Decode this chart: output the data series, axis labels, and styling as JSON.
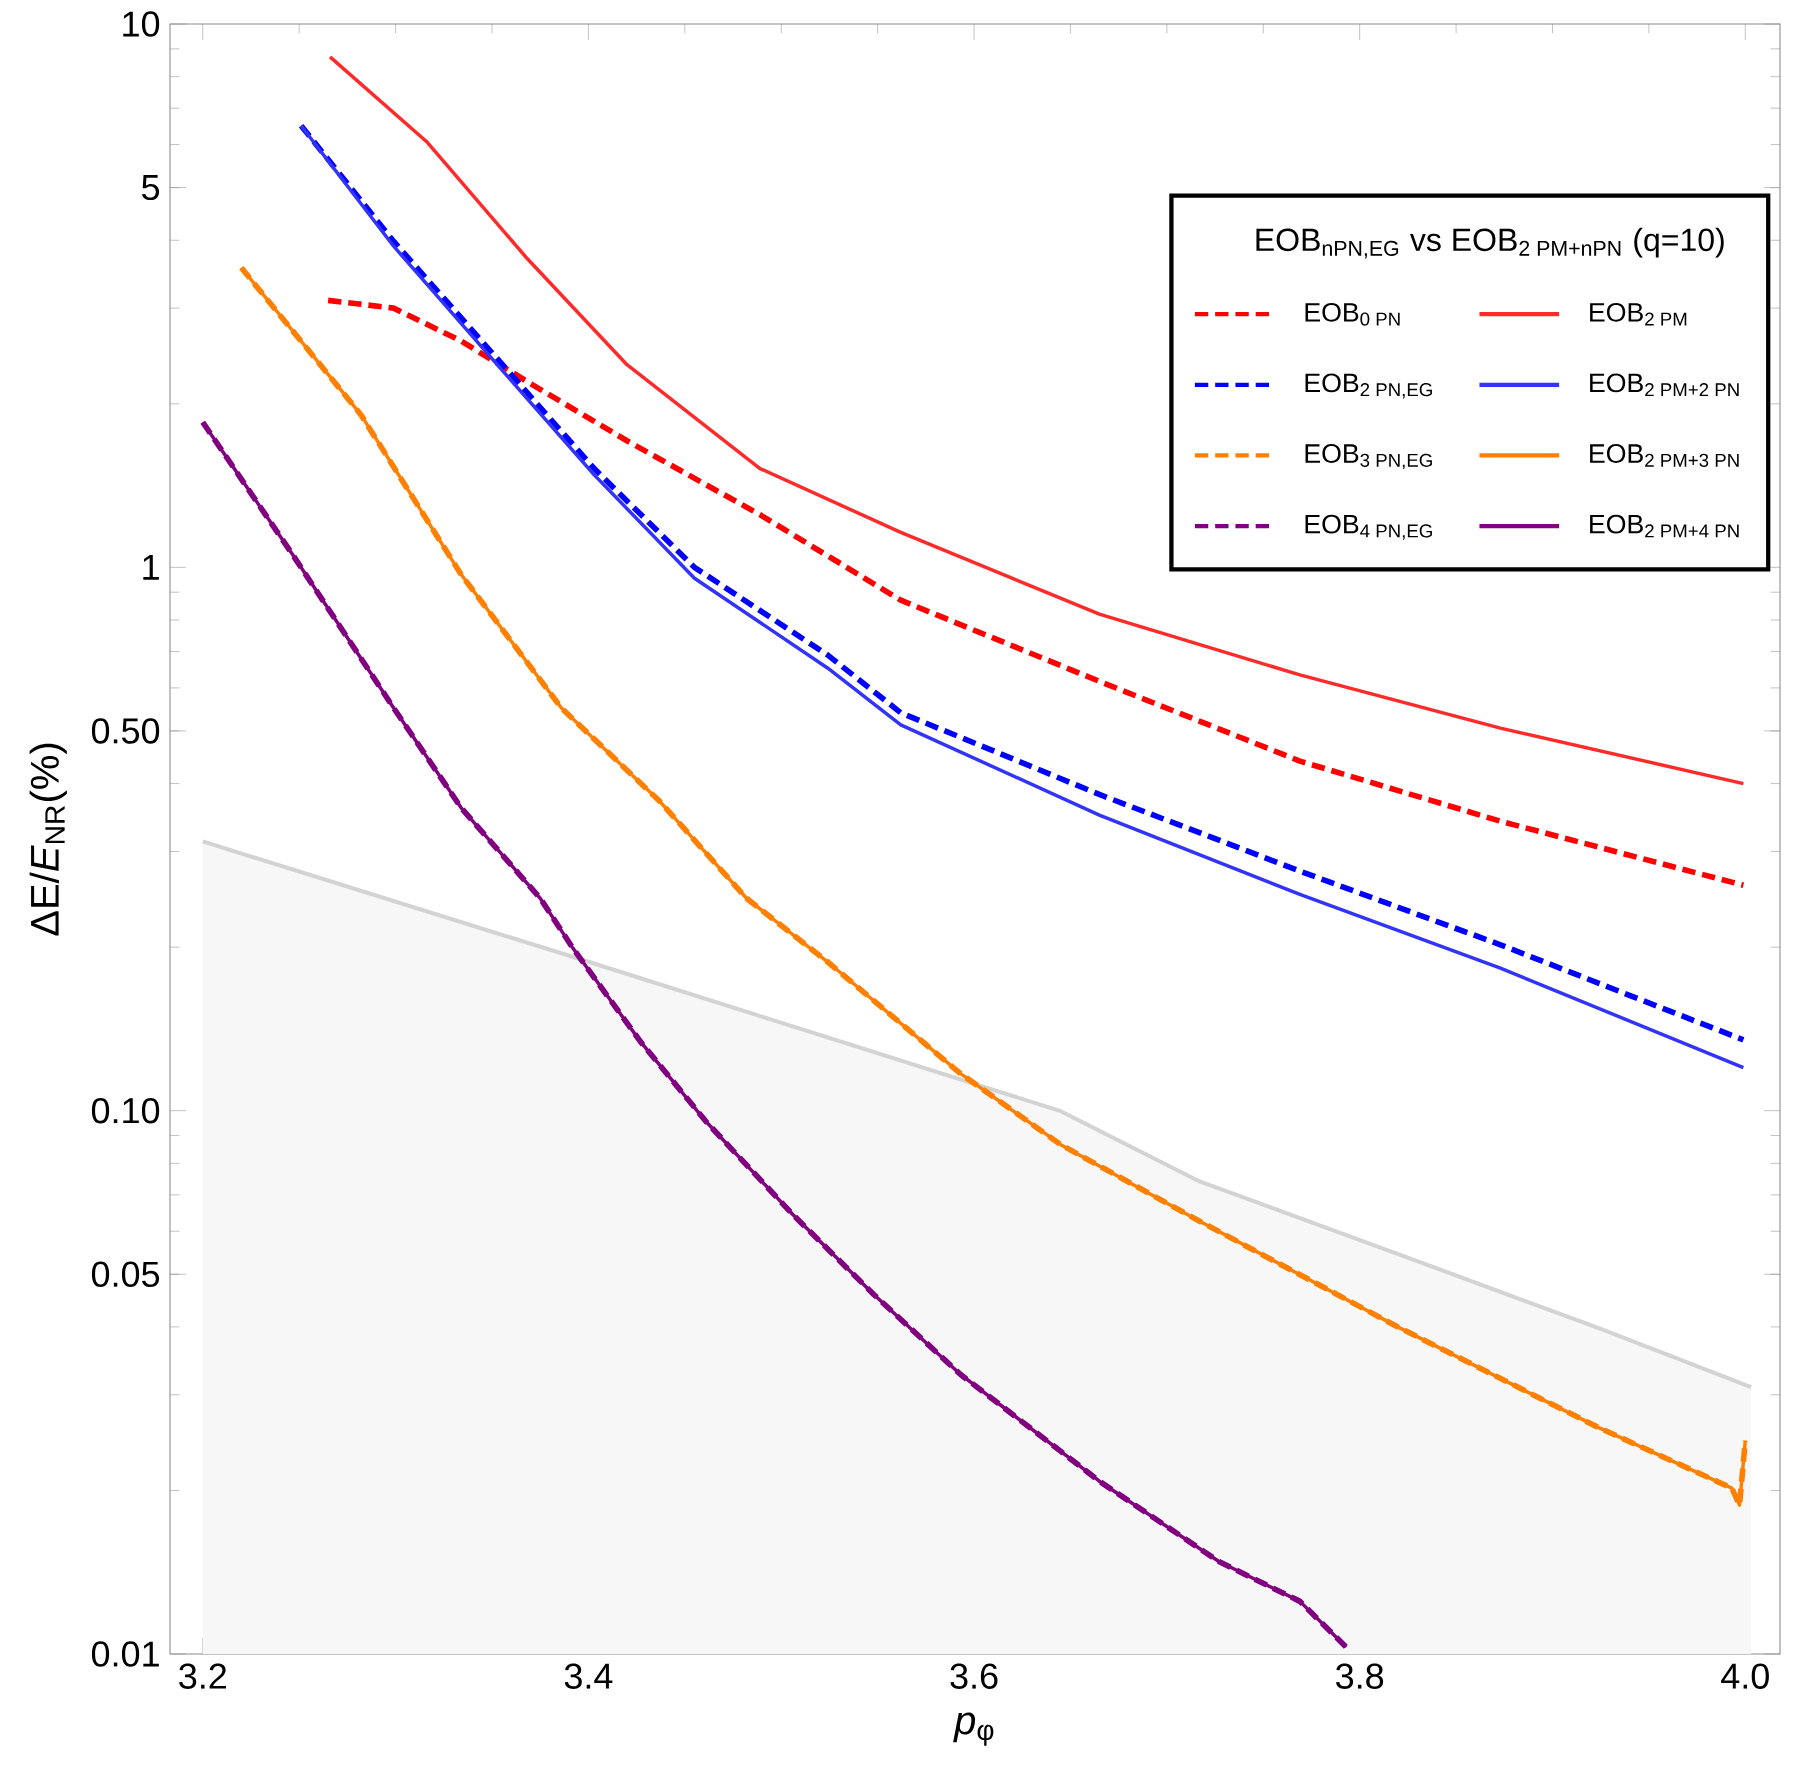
{
  "chart_data": {
    "type": "line",
    "xlabel": "*p*$_{φ}$",
    "ylabel": "ΔE/*E*$_{NR}$(%)",
    "legend_title": "EOB$_{nPN,EG}$ vs EOB$_{2 PM+nPN}$ (q=10)",
    "legend": "top right",
    "log": "y",
    "xlim": [
      3.183,
      4.018
    ],
    "ylim": [
      0.01,
      10
    ],
    "xticks": [
      3.2,
      3.4,
      3.6,
      3.8,
      {
        "value": 4.0,
        "label": "4.0"
      }
    ],
    "yticks": [
      0.01,
      0.05,
      {
        "value": 0.1,
        "label": "0.10"
      },
      {
        "value": 0.5,
        "label": "0.50"
      },
      1,
      5,
      10
    ],
    "series": [
      {
        "type": "area",
        "color": "#d3d3d3",
        "x": [
          3.2,
          3.4,
          3.645,
          3.717,
          3.821,
          3.924,
          4.003
        ],
        "values": [
          0.313,
          0.188,
          0.0998,
          0.0741,
          0.0543,
          0.0398,
          0.031
        ]
      },
      {
        "name": "\\text{EOB}_{\\text{0 PN}}",
        "color": "#ff0000",
        "line_style": "dashed",
        "x": [
          3.265,
          3.299,
          3.334,
          3.368,
          3.42,
          3.489,
          3.562,
          3.665,
          3.769,
          3.873,
          3.999
        ],
        "values": [
          3.1,
          3.0,
          2.61,
          2.2,
          1.71,
          1.25,
          0.87,
          0.617,
          0.44,
          0.341,
          0.26
        ]
      },
      {
        "name": "\\text{EOB}_{\\text{2 PM}}",
        "color": "#ff2a2a",
        "line_style": "solid",
        "x": [
          3.266,
          3.316,
          3.368,
          3.42,
          3.489,
          3.562,
          3.665,
          3.769,
          3.873,
          3.999
        ],
        "values": [
          8.7,
          6.08,
          3.71,
          2.36,
          1.52,
          1.16,
          0.82,
          0.634,
          0.506,
          0.4
        ]
      },
      {
        "name": "\\text{EOB}_{\\text{2 PN,EG}}",
        "color": "#0000ff",
        "line_style": "dashed",
        "x": [
          3.251,
          3.299,
          3.351,
          3.403,
          3.455,
          3.524,
          3.562,
          3.665,
          3.769,
          3.873,
          3.999
        ],
        "values": [
          6.5,
          3.98,
          2.46,
          1.52,
          1.0,
          0.69,
          0.54,
          0.382,
          0.276,
          0.202,
          0.135
        ]
      },
      {
        "name": "\\text{EOB}_{\\text{2 PM+2 PN}}",
        "color": "#3333ff",
        "line_style": "solid",
        "x": [
          3.251,
          3.299,
          3.351,
          3.403,
          3.455,
          3.524,
          3.562,
          3.665,
          3.769,
          3.873,
          3.999
        ],
        "values": [
          6.5,
          3.9,
          2.4,
          1.48,
          0.955,
          0.653,
          0.513,
          0.35,
          0.25,
          0.183,
          0.12
        ]
      },
      {
        "name": "\\text{EOB}_{\\text{3 PN,EG}}",
        "color": "#ff8000",
        "line_style": "dashed",
        "x": [
          3.22,
          3.282,
          3.334,
          3.386,
          3.437,
          3.482,
          3.524,
          3.593,
          3.645,
          3.717,
          3.821,
          3.924,
          3.993,
          3.997,
          4.0
        ],
        "values": [
          3.56,
          1.91,
          0.97,
          0.551,
          0.371,
          0.246,
          0.188,
          0.117,
          0.0866,
          0.0626,
          0.0398,
          0.0261,
          0.0202,
          0.0188,
          0.0247
        ]
      },
      {
        "name": "\\text{EOB}_{\\text{2 PM+3 PN}}",
        "color": "#ff8000",
        "line_style": "solid",
        "x": [
          3.22,
          3.282,
          3.334,
          3.386,
          3.437,
          3.482,
          3.524,
          3.593,
          3.645,
          3.717,
          3.821,
          3.924,
          3.993,
          3.997,
          4.0
        ],
        "values": [
          3.56,
          1.91,
          0.97,
          0.551,
          0.371,
          0.246,
          0.188,
          0.117,
          0.0866,
          0.0626,
          0.0398,
          0.0261,
          0.0202,
          0.0188,
          0.0247
        ]
      },
      {
        "name": "\\text{EOB}_{\\text{4 PN,EG}}",
        "color": "#800080",
        "line_style": "dashed",
        "x": [
          3.2,
          3.247,
          3.299,
          3.334,
          3.375,
          3.392,
          3.427,
          3.461,
          3.506,
          3.548,
          3.593,
          3.645,
          3.665,
          3.727,
          3.769,
          3.793
        ],
        "values": [
          1.85,
          1.05,
          0.551,
          0.361,
          0.246,
          0.199,
          0.134,
          0.0955,
          0.0644,
          0.0459,
          0.0327,
          0.0236,
          0.0208,
          0.0148,
          0.0125,
          0.0103
        ]
      },
      {
        "name": "\\text{EOB}_{\\text{2 PM+4 PN}}",
        "color": "#800080",
        "line_style": "solid",
        "x": [
          3.2,
          3.247,
          3.299,
          3.334,
          3.375,
          3.392,
          3.427,
          3.461,
          3.506,
          3.548,
          3.593,
          3.645,
          3.665,
          3.727,
          3.769,
          3.793
        ],
        "values": [
          1.85,
          1.05,
          0.551,
          0.361,
          0.246,
          0.199,
          0.134,
          0.0955,
          0.0644,
          0.0459,
          0.0327,
          0.0236,
          0.0208,
          0.0148,
          0.0125,
          0.0103
        ]
      }
    ]
  }
}
